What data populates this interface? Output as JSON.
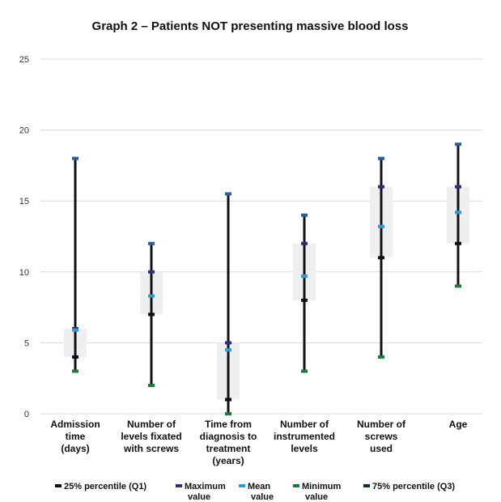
{
  "chart_data": {
    "type": "box",
    "title": "Graph 2 – Patients NOT presenting massive blood loss",
    "ylim": [
      0,
      25
    ],
    "yticks": [
      0,
      5,
      10,
      15,
      20,
      25
    ],
    "grid": true,
    "legend_position": "bottom",
    "categories": [
      [
        "Admission",
        "time",
        "(days)"
      ],
      [
        "Number of",
        "levels fixated",
        "with screws"
      ],
      [
        "Time from",
        "diagnosis to",
        "treatment",
        "(years)"
      ],
      [
        "Number of",
        "instrumented",
        "levels"
      ],
      [
        "Number of",
        "screws",
        "used"
      ],
      [
        "Age"
      ]
    ],
    "series": [
      {
        "name": "25% percentile (Q1)",
        "values": [
          4,
          7,
          1,
          8,
          11,
          12
        ]
      },
      {
        "name": "Maximum value",
        "values": [
          18,
          12,
          15.5,
          14,
          18,
          19
        ]
      },
      {
        "name": "Mean value",
        "values": [
          5.9,
          8.3,
          4.5,
          9.7,
          13.2,
          14.2
        ]
      },
      {
        "name": "Minimum value",
        "values": [
          3,
          2,
          0,
          3,
          4,
          9
        ]
      },
      {
        "name": "75% percentile (Q3)",
        "values": [
          6,
          10,
          5,
          12,
          16,
          16
        ]
      }
    ],
    "legend": [
      {
        "lines": [
          "25% percentile (Q1)"
        ],
        "color": "#111111"
      },
      {
        "lines": [
          "Maximum",
          "value"
        ],
        "color": "#2b2f7d"
      },
      {
        "lines": [
          "Mean",
          "value"
        ],
        "color": "#2e9bd6"
      },
      {
        "lines": [
          "Minimum",
          "value"
        ],
        "color": "#1a7a3a"
      },
      {
        "lines": [
          "75% percentile (Q3)"
        ],
        "color": "#0f2a44"
      }
    ],
    "colors": {
      "whisker": "#111111",
      "box_fill": "#eeeff1",
      "q1": "#111111",
      "max": "#2b5f9e",
      "q3": "#2b2f7d",
      "mean": "#2e9bd6",
      "min": "#1a7a3a",
      "grid": "#d9d9d9"
    }
  }
}
